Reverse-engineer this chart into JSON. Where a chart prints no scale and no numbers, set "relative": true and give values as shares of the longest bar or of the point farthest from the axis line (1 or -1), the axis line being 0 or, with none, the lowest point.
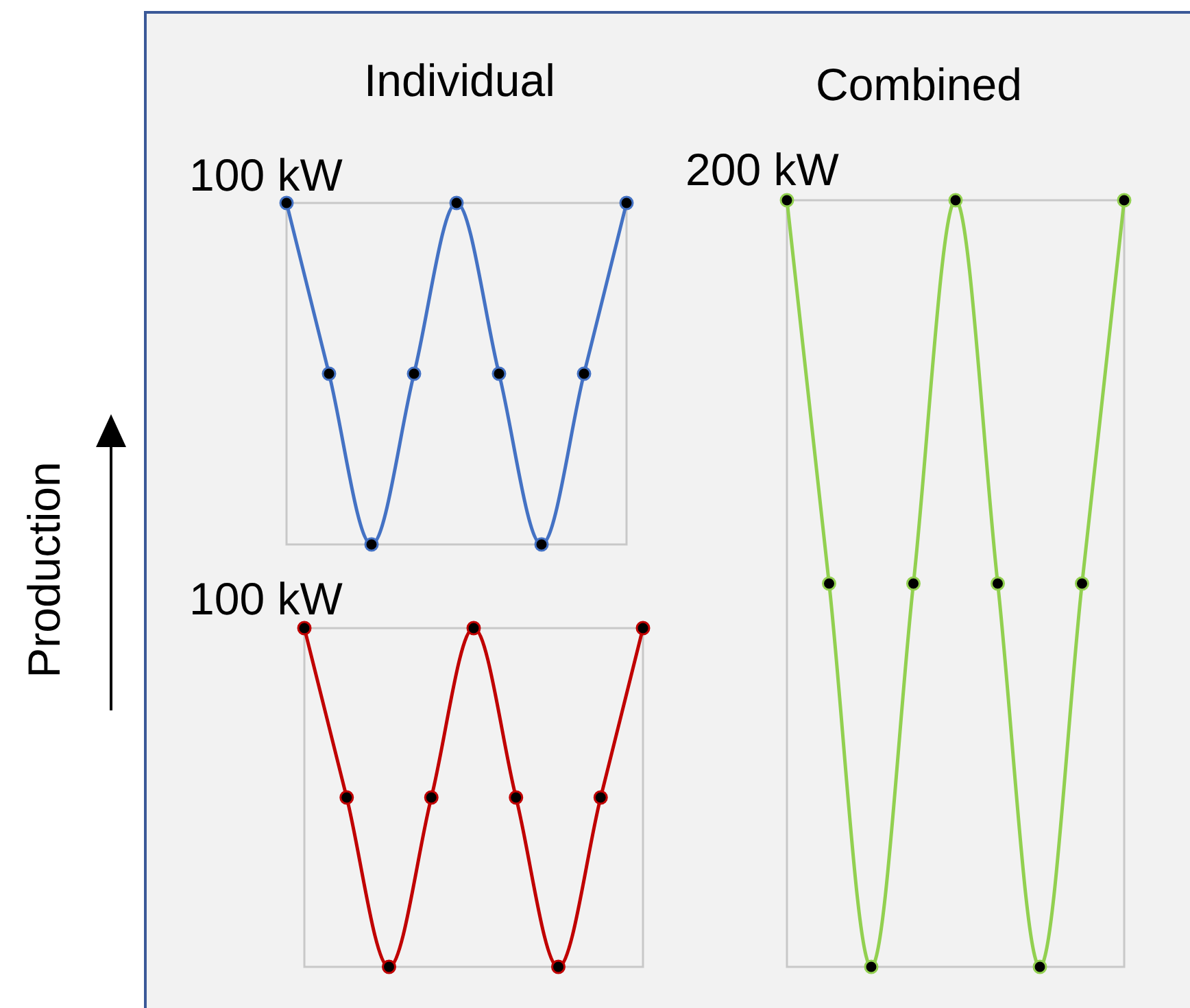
{
  "chart_data": [
    {
      "type": "line",
      "title": "Individual",
      "ylabel": "Production",
      "relative": true,
      "marker": "circle",
      "annotations": [
        "100 kW"
      ],
      "categories": [
        null,
        null,
        null,
        null,
        null,
        null,
        null,
        null,
        null
      ],
      "series": [
        {
          "color": "#4472c4",
          "values": [
            1,
            0.5,
            0,
            0.5,
            1,
            0.5,
            0,
            0.5,
            1
          ]
        }
      ]
    },
    {
      "type": "line",
      "relative": true,
      "marker": "circle",
      "annotations": [
        "100 kW"
      ],
      "categories": [
        null,
        null,
        null,
        null,
        null,
        null,
        null,
        null,
        null
      ],
      "series": [
        {
          "color": "#c00000",
          "values": [
            1,
            0.5,
            0,
            0.5,
            1,
            0.5,
            0,
            0.5,
            1
          ]
        }
      ]
    },
    {
      "type": "line",
      "title": "Combined",
      "relative": true,
      "marker": "circle",
      "annotations": [
        "200 kW"
      ],
      "categories": [
        null,
        null,
        null,
        null,
        null,
        null,
        null,
        null,
        null
      ],
      "series": [
        {
          "color": "#92d050",
          "values": [
            1,
            0.5,
            0,
            0.5,
            1,
            0.5,
            0,
            0.5,
            1
          ]
        }
      ]
    }
  ]
}
